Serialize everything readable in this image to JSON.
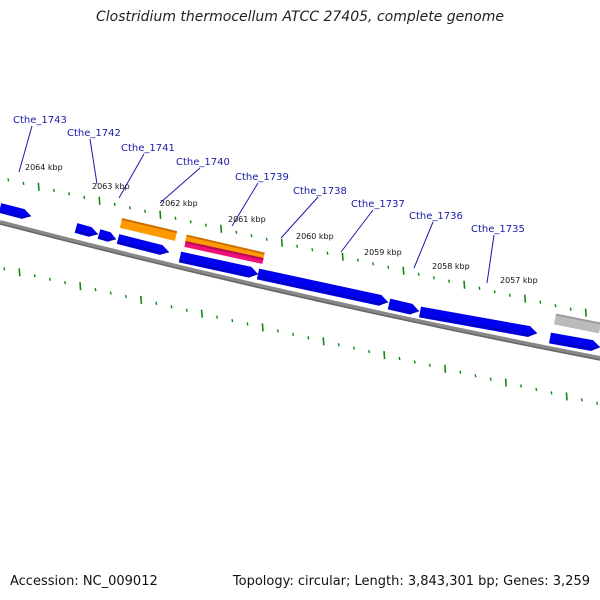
{
  "title": "Clostridium thermocellum ATCC 27405, complete genome",
  "footer": {
    "accession": "Accession: NC_009012",
    "topology": "Topology: circular; Length: 3,843,301 bp; Genes: 3,259"
  },
  "genes": [
    "Cthe_1743",
    "Cthe_1742",
    "Cthe_1741",
    "Cthe_1740",
    "Cthe_1739",
    "Cthe_1738",
    "Cthe_1737",
    "Cthe_1736",
    "Cthe_1735"
  ],
  "kbp_ticks": [
    "2064 kbp",
    "2063 kbp",
    "2062 kbp",
    "2061 kbp",
    "2060 kbp",
    "2059 kbp",
    "2058 kbp",
    "2057 kbp"
  ],
  "colors": {
    "cds": "#0000ee",
    "rna_orange": "#ff9900",
    "rna_pink": "#ee1177",
    "backbone": "#888888",
    "ticks": "#118811",
    "label": "#1a1aa6"
  }
}
